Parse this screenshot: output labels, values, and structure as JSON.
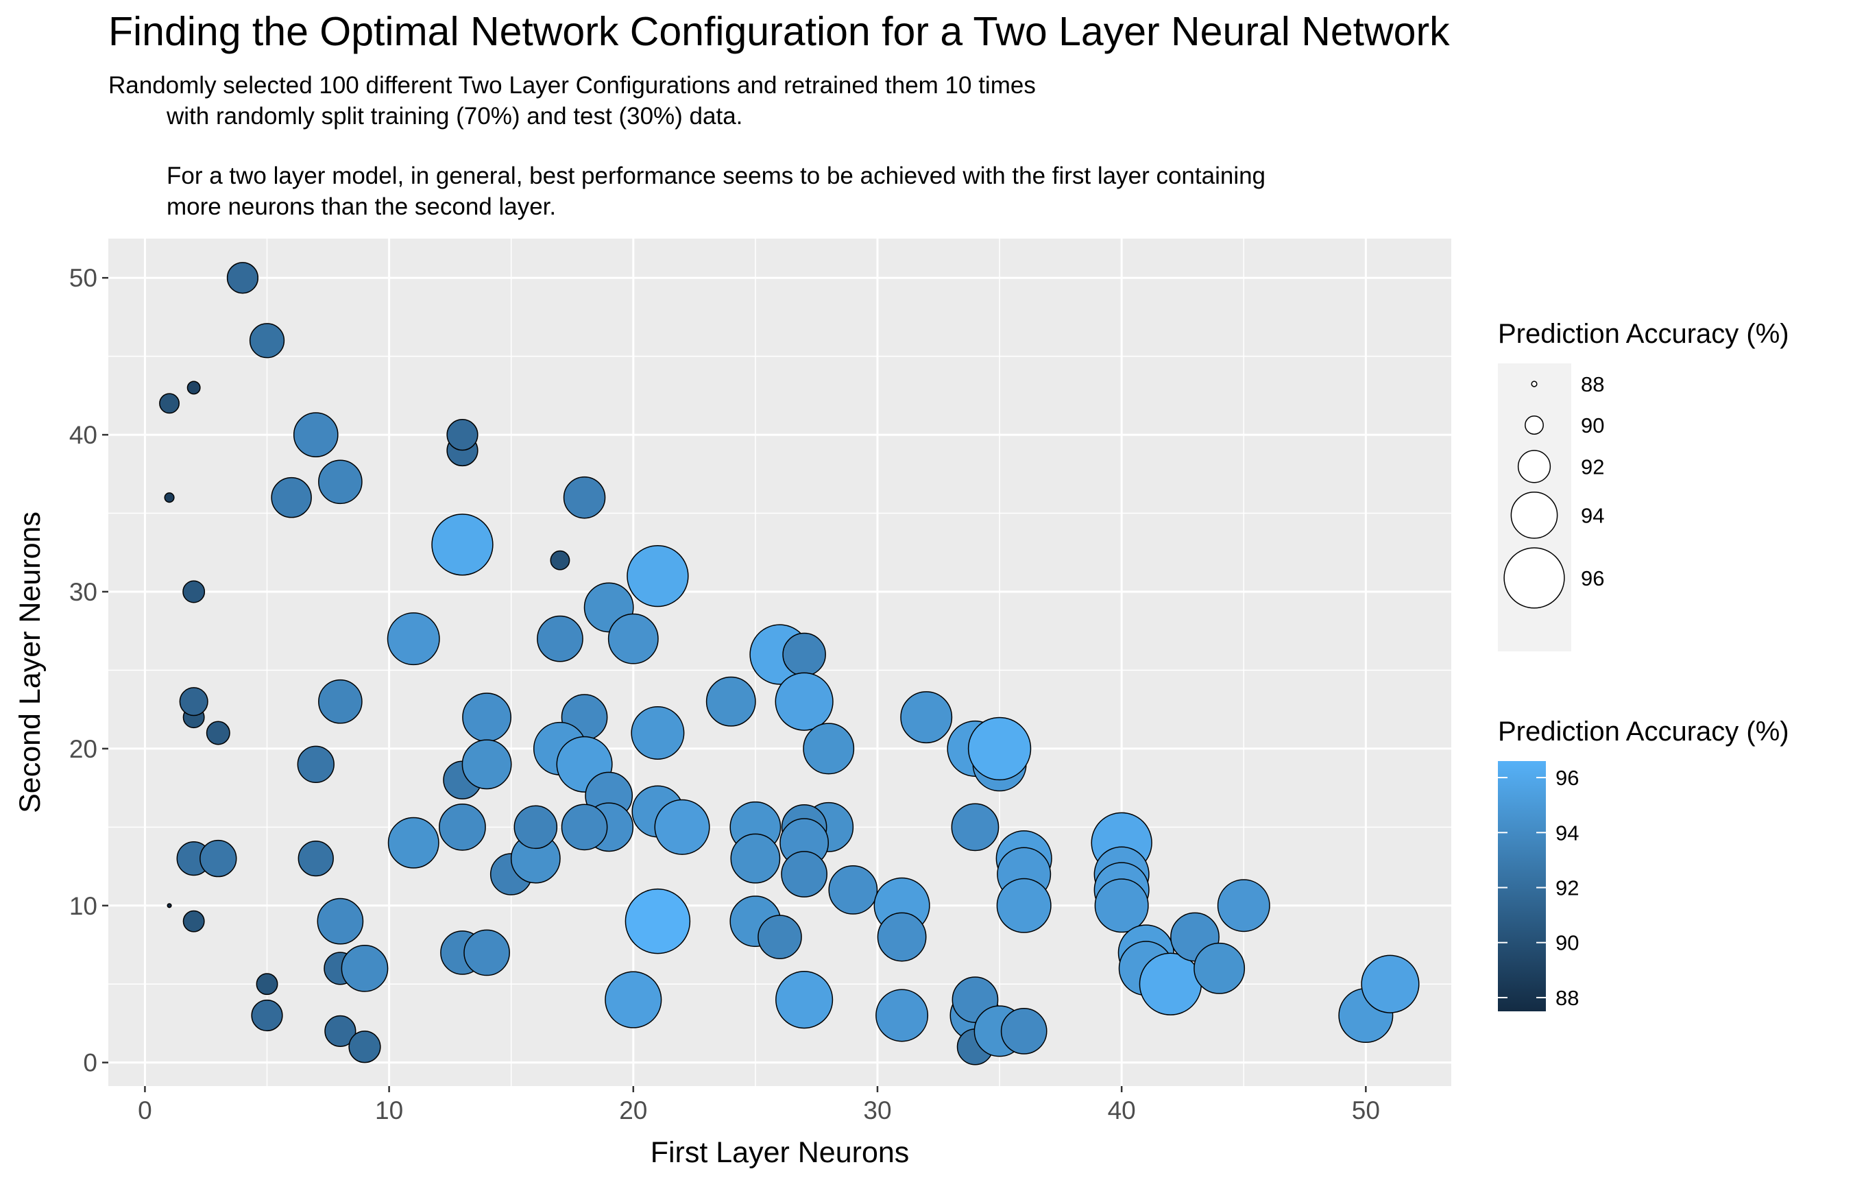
{
  "chart_data": {
    "type": "scatter",
    "title": "Finding the Optimal Network Configuration for a Two Layer Neural Network",
    "subtitle_lines": [
      "Randomly selected 100 different Two Layer Configurations and retrained them 10 times",
      "with randomly split training (70%) and test (30%) data.",
      "For a two layer model, in general, best performance seems to be achieved with the first layer containing",
      "more neurons than the second layer."
    ],
    "xlabel": "First Layer Neurons",
    "ylabel": "Second Layer Neurons",
    "xlim": [
      -1.5,
      53.5
    ],
    "ylim": [
      -1.5,
      52.5
    ],
    "x_ticks": [
      0,
      10,
      20,
      30,
      40,
      50
    ],
    "y_ticks": [
      0,
      10,
      20,
      30,
      40,
      50
    ],
    "grid": true,
    "encoding": {
      "size": "Prediction Accuracy (%)",
      "color": "Prediction Accuracy (%)"
    },
    "size_legend": {
      "title": "Prediction Accuracy (%)",
      "values": [
        88,
        90,
        92,
        94,
        96
      ],
      "labels": [
        "88",
        "90",
        "92",
        "94",
        "96"
      ]
    },
    "color_legend": {
      "title": "Prediction Accuracy (%)",
      "ticks": [
        88,
        90,
        92,
        94,
        96
      ],
      "labels": [
        "88",
        "90",
        "92",
        "94",
        "96"
      ],
      "low_color": "#132B43",
      "high_color": "#56B1F7",
      "range": [
        87.5,
        96.6
      ]
    },
    "points": [
      {
        "x": 4,
        "y": 50,
        "acc": 91.8
      },
      {
        "x": 5,
        "y": 46,
        "acc": 92.3
      },
      {
        "x": 1,
        "y": 42,
        "acc": 90.2
      },
      {
        "x": 2,
        "y": 43,
        "acc": 89.2
      },
      {
        "x": 1,
        "y": 36,
        "acc": 88.7
      },
      {
        "x": 2,
        "y": 30,
        "acc": 90.5
      },
      {
        "x": 2,
        "y": 22,
        "acc": 90.4
      },
      {
        "x": 2,
        "y": 23,
        "acc": 91.4
      },
      {
        "x": 3,
        "y": 21,
        "acc": 90.7
      },
      {
        "x": 2,
        "y": 13,
        "acc": 92.2
      },
      {
        "x": 3,
        "y": 13,
        "acc": 92.6
      },
      {
        "x": 1,
        "y": 10,
        "acc": 87.5
      },
      {
        "x": 2,
        "y": 9,
        "acc": 90.4
      },
      {
        "x": 5,
        "y": 5,
        "acc": 90.4
      },
      {
        "x": 5,
        "y": 3,
        "acc": 91.8
      },
      {
        "x": 7,
        "y": 40,
        "acc": 93.7
      },
      {
        "x": 6,
        "y": 36,
        "acc": 93.1
      },
      {
        "x": 8,
        "y": 37,
        "acc": 93.6
      },
      {
        "x": 7,
        "y": 19,
        "acc": 92.6
      },
      {
        "x": 8,
        "y": 23,
        "acc": 93.6
      },
      {
        "x": 7,
        "y": 13,
        "acc": 92.4
      },
      {
        "x": 8,
        "y": 9,
        "acc": 93.9
      },
      {
        "x": 8,
        "y": 6,
        "acc": 92.0
      },
      {
        "x": 9,
        "y": 6,
        "acc": 94.0
      },
      {
        "x": 8,
        "y": 2,
        "acc": 91.8
      },
      {
        "x": 9,
        "y": 1,
        "acc": 91.9
      },
      {
        "x": 13,
        "y": 39,
        "acc": 91.8
      },
      {
        "x": 13,
        "y": 40,
        "acc": 91.8
      },
      {
        "x": 13,
        "y": 33,
        "acc": 96.1
      },
      {
        "x": 11,
        "y": 27,
        "acc": 94.8
      },
      {
        "x": 11,
        "y": 14,
        "acc": 94.6
      },
      {
        "x": 13,
        "y": 18,
        "acc": 92.8
      },
      {
        "x": 13,
        "y": 15,
        "acc": 94.0
      },
      {
        "x": 14,
        "y": 22,
        "acc": 94.3
      },
      {
        "x": 14,
        "y": 19,
        "acc": 94.4
      },
      {
        "x": 13,
        "y": 7,
        "acc": 93.6
      },
      {
        "x": 14,
        "y": 7,
        "acc": 93.9
      },
      {
        "x": 15,
        "y": 12,
        "acc": 93.3
      },
      {
        "x": 16,
        "y": 13,
        "acc": 94.4
      },
      {
        "x": 16,
        "y": 15,
        "acc": 93.5
      },
      {
        "x": 18,
        "y": 36,
        "acc": 93.3
      },
      {
        "x": 17,
        "y": 32,
        "acc": 90.1
      },
      {
        "x": 17,
        "y": 27,
        "acc": 93.9
      },
      {
        "x": 19,
        "y": 29,
        "acc": 94.4
      },
      {
        "x": 20,
        "y": 27,
        "acc": 94.5
      },
      {
        "x": 21,
        "y": 31,
        "acc": 96.1
      },
      {
        "x": 18,
        "y": 22,
        "acc": 93.9
      },
      {
        "x": 17,
        "y": 20,
        "acc": 94.9
      },
      {
        "x": 18,
        "y": 19,
        "acc": 95.3
      },
      {
        "x": 19,
        "y": 17,
        "acc": 94.1
      },
      {
        "x": 19,
        "y": 15,
        "acc": 94.3
      },
      {
        "x": 18,
        "y": 15,
        "acc": 93.9
      },
      {
        "x": 21,
        "y": 21,
        "acc": 94.9
      },
      {
        "x": 21,
        "y": 16,
        "acc": 94.7
      },
      {
        "x": 22,
        "y": 15,
        "acc": 95.2
      },
      {
        "x": 21,
        "y": 9,
        "acc": 96.6
      },
      {
        "x": 20,
        "y": 4,
        "acc": 95.4
      },
      {
        "x": 24,
        "y": 23,
        "acc": 94.4
      },
      {
        "x": 26,
        "y": 26,
        "acc": 95.9
      },
      {
        "x": 27,
        "y": 26,
        "acc": 93.5
      },
      {
        "x": 27,
        "y": 23,
        "acc": 95.6
      },
      {
        "x": 28,
        "y": 20,
        "acc": 94.6
      },
      {
        "x": 28,
        "y": 15,
        "acc": 94.4
      },
      {
        "x": 27,
        "y": 15,
        "acc": 93.8
      },
      {
        "x": 27,
        "y": 14,
        "acc": 94.3
      },
      {
        "x": 27,
        "y": 12,
        "acc": 93.9
      },
      {
        "x": 25,
        "y": 15,
        "acc": 94.6
      },
      {
        "x": 25,
        "y": 13,
        "acc": 94.4
      },
      {
        "x": 25,
        "y": 9,
        "acc": 94.6
      },
      {
        "x": 26,
        "y": 8,
        "acc": 93.6
      },
      {
        "x": 27,
        "y": 4,
        "acc": 95.5
      },
      {
        "x": 29,
        "y": 11,
        "acc": 94.3
      },
      {
        "x": 32,
        "y": 22,
        "acc": 94.7
      },
      {
        "x": 31,
        "y": 10,
        "acc": 95.3
      },
      {
        "x": 31,
        "y": 8,
        "acc": 94.3
      },
      {
        "x": 31,
        "y": 3,
        "acc": 94.8
      },
      {
        "x": 34,
        "y": 20,
        "acc": 95.3
      },
      {
        "x": 35,
        "y": 19,
        "acc": 95.0
      },
      {
        "x": 35,
        "y": 20,
        "acc": 96.3
      },
      {
        "x": 34,
        "y": 15,
        "acc": 94.1
      },
      {
        "x": 36,
        "y": 13,
        "acc": 95.3
      },
      {
        "x": 36,
        "y": 12,
        "acc": 95.0
      },
      {
        "x": 36,
        "y": 10,
        "acc": 95.1
      },
      {
        "x": 34,
        "y": 3,
        "acc": 94.5
      },
      {
        "x": 34,
        "y": 4,
        "acc": 93.9
      },
      {
        "x": 34,
        "y": 1,
        "acc": 92.5
      },
      {
        "x": 35,
        "y": 2,
        "acc": 94.6
      },
      {
        "x": 36,
        "y": 2,
        "acc": 93.9
      },
      {
        "x": 40,
        "y": 14,
        "acc": 96.0
      },
      {
        "x": 40,
        "y": 12,
        "acc": 95.2
      },
      {
        "x": 40,
        "y": 11,
        "acc": 95.2
      },
      {
        "x": 40,
        "y": 10,
        "acc": 95.0
      },
      {
        "x": 41,
        "y": 7,
        "acc": 95.3
      },
      {
        "x": 41,
        "y": 6,
        "acc": 95.1
      },
      {
        "x": 42,
        "y": 5,
        "acc": 96.2
      },
      {
        "x": 43,
        "y": 8,
        "acc": 94.3
      },
      {
        "x": 44,
        "y": 6,
        "acc": 94.6
      },
      {
        "x": 45,
        "y": 10,
        "acc": 94.8
      },
      {
        "x": 50,
        "y": 3,
        "acc": 95.1
      },
      {
        "x": 51,
        "y": 5,
        "acc": 95.6
      }
    ]
  }
}
